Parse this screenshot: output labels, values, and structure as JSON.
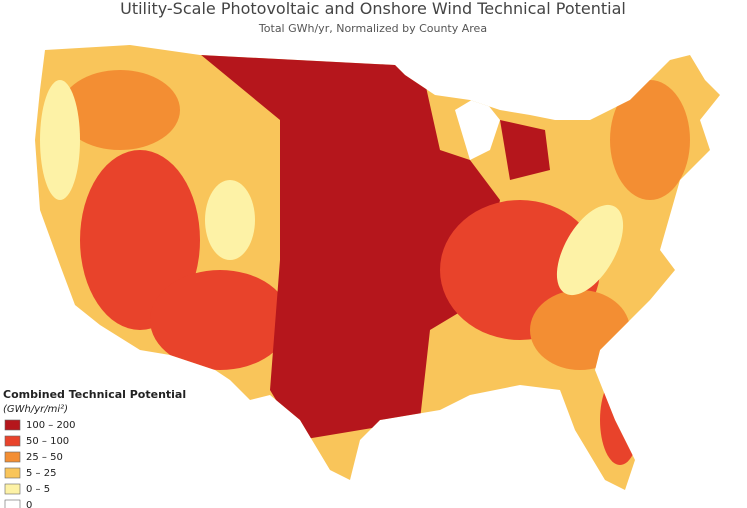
{
  "header": {
    "title": "Utility-Scale Photovoltaic and Onshore Wind Technical Potential",
    "subtitle": "Total GWh/yr, Normalized by County Area"
  },
  "legend": {
    "title": "Combined Technical Potential",
    "unit": "(GWh/yr/mi²)",
    "items": [
      {
        "label": "100 – 200",
        "color": "#b5161c"
      },
      {
        "label": "50 – 100",
        "color": "#e8432b"
      },
      {
        "label": "25 – 50",
        "color": "#f38e33"
      },
      {
        "label": "5 – 25",
        "color": "#f9c55a"
      },
      {
        "label": "0 – 5",
        "color": "#fdf2a6"
      },
      {
        "label": "0",
        "color": "#ffffff"
      }
    ]
  }
}
